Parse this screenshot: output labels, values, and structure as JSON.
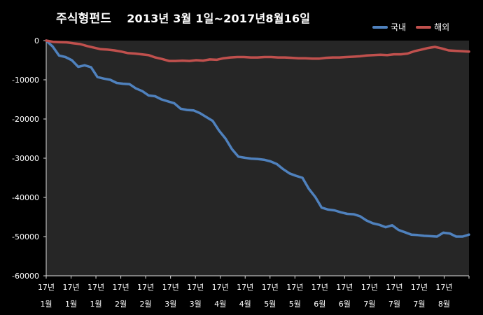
{
  "chart_data": {
    "type": "line",
    "title": "주식형펀드",
    "subtitle": "2013년 3월 1일~2017년8월16일",
    "ylim": [
      -60000,
      0
    ],
    "yticks": [
      0,
      -10000,
      -20000,
      -30000,
      -40000,
      -50000,
      -60000
    ],
    "ytick_labels": [
      "0",
      "-10000",
      "-20000",
      "-30000",
      "-40000",
      "-50000",
      "-60000"
    ],
    "xtick_labels": [
      [
        "17년",
        "1월"
      ],
      [
        "17년",
        "1월"
      ],
      [
        "17년",
        "1월"
      ],
      [
        "17년",
        "2월"
      ],
      [
        "17년",
        "2월"
      ],
      [
        "17년",
        "3월"
      ],
      [
        "17년",
        "3월"
      ],
      [
        "17년",
        "4월"
      ],
      [
        "17년",
        "4월"
      ],
      [
        "17년",
        "5월"
      ],
      [
        "17년",
        "5월"
      ],
      [
        "17년",
        "6월"
      ],
      [
        "17년",
        "6월"
      ],
      [
        "17년",
        "7월"
      ],
      [
        "17년",
        "7월"
      ],
      [
        "17년",
        "7월"
      ],
      [
        "17년",
        "8월"
      ]
    ],
    "grid": false,
    "legend_position": "top-right",
    "colors": {
      "background": "#000000",
      "plot_area": "#262626",
      "axis": "#d9d9d9"
    },
    "series": [
      {
        "name": "국내",
        "color": "#4f81bd",
        "values": [
          0,
          -1500,
          -3800,
          -4200,
          -5000,
          -6700,
          -6300,
          -6800,
          -9300,
          -9700,
          -10000,
          -10800,
          -11000,
          -11100,
          -12200,
          -12900,
          -14000,
          -14200,
          -15000,
          -15500,
          -16000,
          -17400,
          -17700,
          -17800,
          -18500,
          -19500,
          -20500,
          -23000,
          -25000,
          -27700,
          -29600,
          -29900,
          -30100,
          -30200,
          -30400,
          -30800,
          -31500,
          -32800,
          -33900,
          -34500,
          -35000,
          -37800,
          -39900,
          -42600,
          -43100,
          -43300,
          -43800,
          -44200,
          -44300,
          -44800,
          -45900,
          -46600,
          -47000,
          -47600,
          -47100,
          -48300,
          -48900,
          -49500,
          -49600,
          -49800,
          -49900,
          -50000,
          -49000,
          -49200,
          -50000,
          -50000,
          -49500
        ]
      },
      {
        "name": "해외",
        "color": "#c0504d",
        "values": [
          0,
          -300,
          -400,
          -450,
          -700,
          -900,
          -1400,
          -1800,
          -2200,
          -2300,
          -2500,
          -2800,
          -3200,
          -3300,
          -3500,
          -3700,
          -4300,
          -4700,
          -5200,
          -5200,
          -5100,
          -5200,
          -5000,
          -5100,
          -4800,
          -4900,
          -4500,
          -4300,
          -4200,
          -4200,
          -4300,
          -4300,
          -4200,
          -4200,
          -4300,
          -4300,
          -4400,
          -4500,
          -4500,
          -4600,
          -4600,
          -4400,
          -4300,
          -4300,
          -4200,
          -4100,
          -4000,
          -3800,
          -3700,
          -3600,
          -3700,
          -3500,
          -3500,
          -3300,
          -2700,
          -2300,
          -1900,
          -1600,
          -2000,
          -2500,
          -2600,
          -2700,
          -2800
        ]
      }
    ]
  }
}
